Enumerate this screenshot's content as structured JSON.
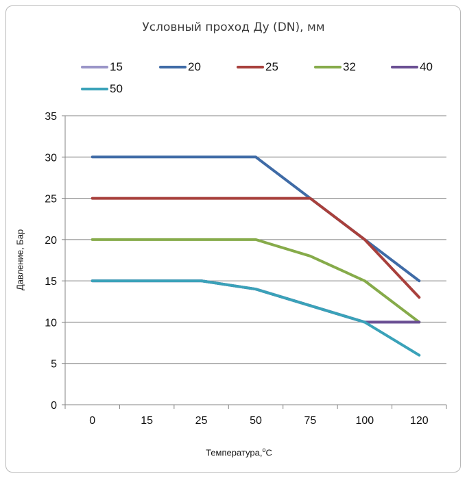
{
  "chart_data": {
    "type": "line",
    "title": "Условный проход Ду (DN), мм",
    "xlabel": "Температура,",
    "xlabel_unit_sup": "o",
    "xlabel_unit": "C",
    "ylabel": "Давление, Бар",
    "categories": [
      "0",
      "15",
      "25",
      "50",
      "75",
      "100",
      "120"
    ],
    "ylim": [
      0,
      35
    ],
    "yticks": [
      0,
      5,
      10,
      15,
      20,
      25,
      30,
      35
    ],
    "grid": true,
    "legend": "top",
    "series": [
      {
        "name": "15",
        "color": "#9a95c8",
        "values": [
          15,
          15,
          15,
          14,
          12,
          10,
          10
        ]
      },
      {
        "name": "20",
        "color": "#3f6ba6",
        "values": [
          30,
          30,
          30,
          30,
          25,
          20,
          15
        ]
      },
      {
        "name": "25",
        "color": "#a8403c",
        "values": [
          25,
          25,
          25,
          25,
          25,
          20,
          13
        ]
      },
      {
        "name": "32",
        "color": "#86ab4a",
        "values": [
          20,
          20,
          20,
          20,
          18,
          15,
          10
        ]
      },
      {
        "name": "40",
        "color": "#6a4f93",
        "values": [
          15,
          15,
          15,
          14,
          12,
          10,
          10
        ]
      },
      {
        "name": "50",
        "color": "#3aa2b9",
        "values": [
          15,
          15,
          15,
          14,
          12,
          10,
          6
        ]
      }
    ]
  }
}
